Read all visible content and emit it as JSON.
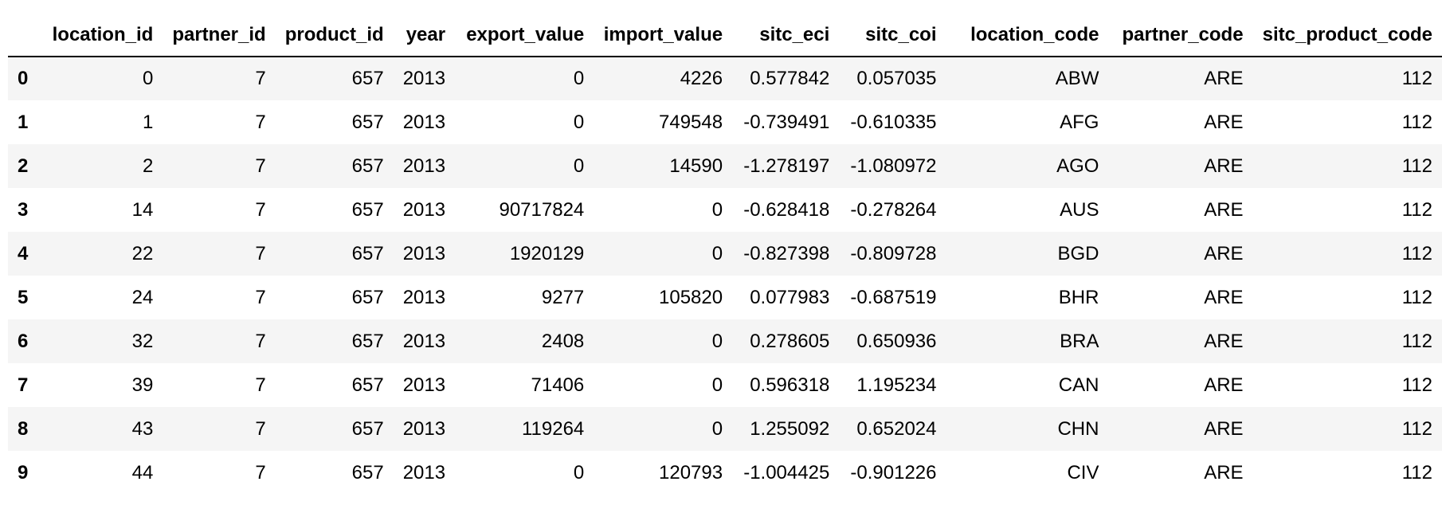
{
  "table": {
    "index_header": "",
    "columns": [
      "location_id",
      "partner_id",
      "product_id",
      "year",
      "export_value",
      "import_value",
      "sitc_eci",
      "sitc_coi",
      "location_code",
      "partner_code",
      "sitc_product_code"
    ],
    "rows": [
      {
        "index": "0",
        "cells": [
          "0",
          "7",
          "657",
          "2013",
          "0",
          "4226",
          "0.577842",
          "0.057035",
          "ABW",
          "ARE",
          "112"
        ]
      },
      {
        "index": "1",
        "cells": [
          "1",
          "7",
          "657",
          "2013",
          "0",
          "749548",
          "-0.739491",
          "-0.610335",
          "AFG",
          "ARE",
          "112"
        ]
      },
      {
        "index": "2",
        "cells": [
          "2",
          "7",
          "657",
          "2013",
          "0",
          "14590",
          "-1.278197",
          "-1.080972",
          "AGO",
          "ARE",
          "112"
        ]
      },
      {
        "index": "3",
        "cells": [
          "14",
          "7",
          "657",
          "2013",
          "90717824",
          "0",
          "-0.628418",
          "-0.278264",
          "AUS",
          "ARE",
          "112"
        ]
      },
      {
        "index": "4",
        "cells": [
          "22",
          "7",
          "657",
          "2013",
          "1920129",
          "0",
          "-0.827398",
          "-0.809728",
          "BGD",
          "ARE",
          "112"
        ]
      },
      {
        "index": "5",
        "cells": [
          "24",
          "7",
          "657",
          "2013",
          "9277",
          "105820",
          "0.077983",
          "-0.687519",
          "BHR",
          "ARE",
          "112"
        ]
      },
      {
        "index": "6",
        "cells": [
          "32",
          "7",
          "657",
          "2013",
          "2408",
          "0",
          "0.278605",
          "0.650936",
          "BRA",
          "ARE",
          "112"
        ]
      },
      {
        "index": "7",
        "cells": [
          "39",
          "7",
          "657",
          "2013",
          "71406",
          "0",
          "0.596318",
          "1.195234",
          "CAN",
          "ARE",
          "112"
        ]
      },
      {
        "index": "8",
        "cells": [
          "43",
          "7",
          "657",
          "2013",
          "119264",
          "0",
          "1.255092",
          "0.652024",
          "CHN",
          "ARE",
          "112"
        ]
      },
      {
        "index": "9",
        "cells": [
          "44",
          "7",
          "657",
          "2013",
          "0",
          "120793",
          "-1.004425",
          "-0.901226",
          "CIV",
          "ARE",
          "112"
        ]
      }
    ]
  }
}
